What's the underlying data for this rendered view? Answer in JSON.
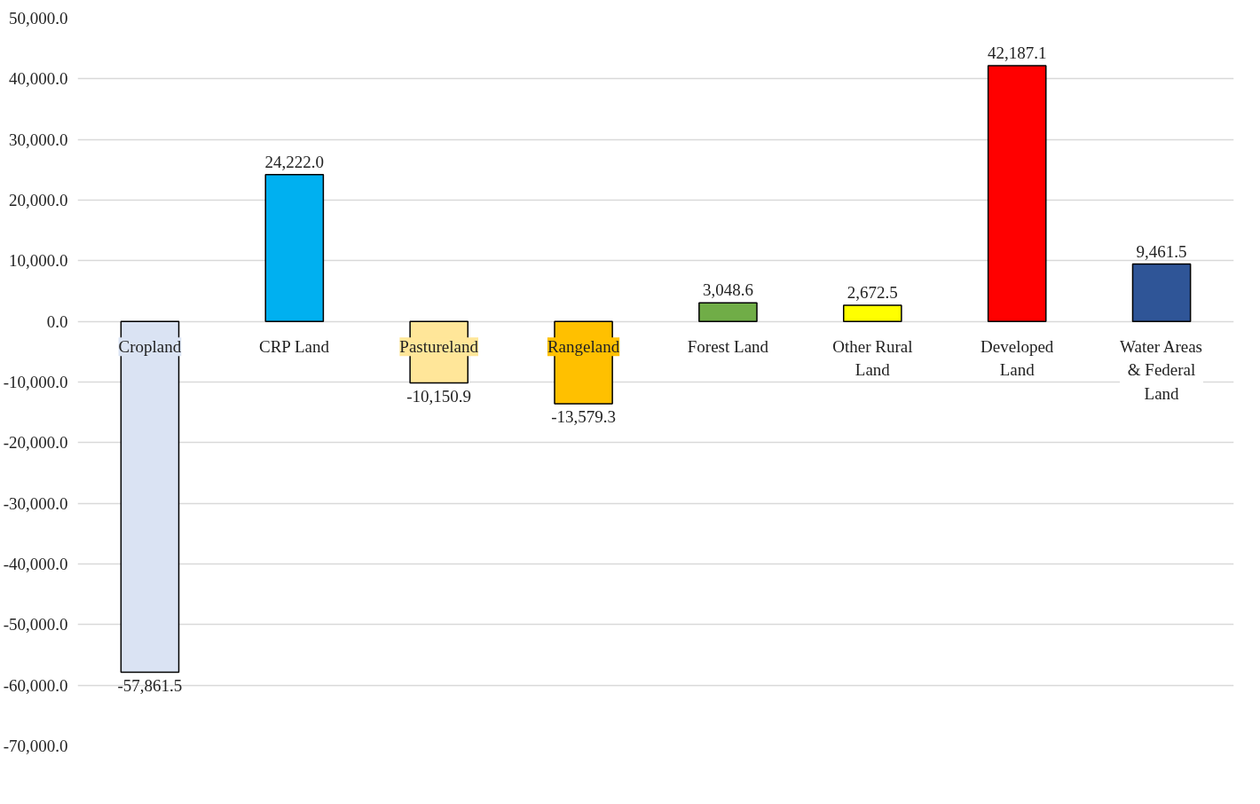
{
  "chart_data": {
    "type": "bar",
    "categories": [
      "Cropland",
      "CRP Land",
      "Pastureland",
      "Rangeland",
      "Forest Land",
      "Other Rural Land",
      "Developed Land",
      "Water Areas & Federal Land"
    ],
    "values": [
      -57861.5,
      24222.0,
      -10150.9,
      -13579.3,
      3048.6,
      2672.5,
      42187.1,
      9461.5
    ],
    "colors": [
      "#dae3f3",
      "#00b0f0",
      "#ffe699",
      "#ffc000",
      "#70ad47",
      "#ffff00",
      "#ff0000",
      "#2f5597"
    ],
    "ylim": [
      -70000,
      50000
    ],
    "yticks": [
      {
        "value": -70000,
        "label": "-70,000.0"
      },
      {
        "value": -60000,
        "label": "-60,000.0"
      },
      {
        "value": -50000,
        "label": "-50,000.0"
      },
      {
        "value": -40000,
        "label": "-40,000.0"
      },
      {
        "value": -30000,
        "label": "-30,000.0"
      },
      {
        "value": -20000,
        "label": "-20,000.0"
      },
      {
        "value": -10000,
        "label": "-10,000.0"
      },
      {
        "value": 0,
        "label": "0.0"
      },
      {
        "value": 10000,
        "label": "10,000.0"
      },
      {
        "value": 20000,
        "label": "20,000.0"
      },
      {
        "value": 30000,
        "label": "30,000.0"
      },
      {
        "value": 40000,
        "label": "40,000.0"
      },
      {
        "value": 50000,
        "label": "50,000.0"
      }
    ],
    "grid": "y",
    "value_labels": [
      "-57,861.5",
      "24,222.0",
      "-10,150.9",
      "-13,579.3",
      "3,048.6",
      "2,672.5",
      "42,187.1",
      "9,461.5"
    ]
  }
}
